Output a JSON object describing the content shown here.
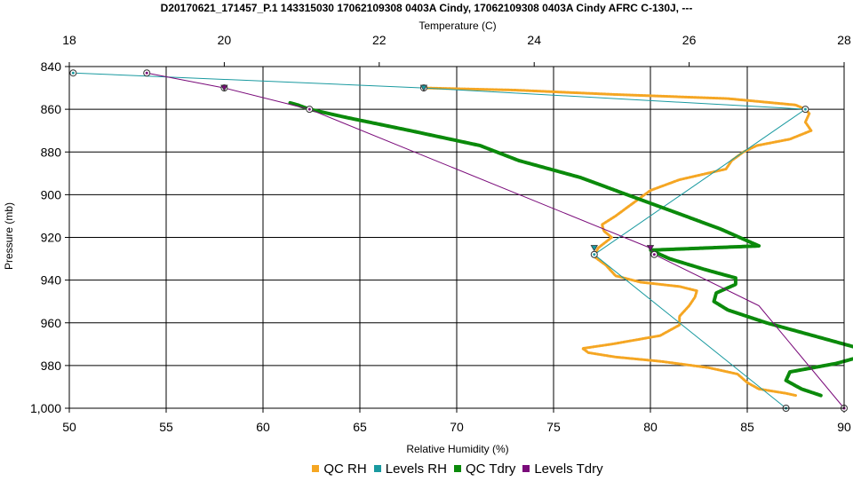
{
  "colors": {
    "qc_rh": "#f5a623",
    "levels_rh": "#1a9aa0",
    "qc_tdry": "#0b8a0b",
    "levels_tdry": "#7a0b7a",
    "grid": "#000000"
  },
  "chart_data": {
    "type": "line",
    "title": "D20170621_171457_P.1 143315030 17062109308 0403A Cindy, 17062109308 0403A Cindy AFRC C-130J, ---",
    "xlabel": "Relative Humidity (%)",
    "x2label": "Temperature (C)",
    "ylabel": "Pressure (mb)",
    "xlim": [
      50,
      90
    ],
    "x2lim": [
      18,
      28
    ],
    "ylim": [
      840,
      1000
    ],
    "y_inverted": true,
    "grid": true,
    "legend_position": "bottom",
    "x_ticks": [
      "50",
      "55",
      "60",
      "65",
      "70",
      "75",
      "80",
      "85",
      "90"
    ],
    "x2_ticks": [
      "18",
      "20",
      "22",
      "24",
      "26",
      "28"
    ],
    "y_ticks": [
      "840",
      "860",
      "880",
      "900",
      "920",
      "940",
      "960",
      "980",
      "1,000"
    ],
    "series": [
      {
        "name": "QC RH",
        "axis": "rh",
        "style": "qc",
        "points": [
          [
            68.3,
            850
          ],
          [
            73,
            851
          ],
          [
            78,
            853
          ],
          [
            84,
            855
          ],
          [
            87.5,
            858
          ],
          [
            88,
            860
          ],
          [
            88.2,
            862
          ],
          [
            88,
            866
          ],
          [
            88.3,
            870
          ],
          [
            87.2,
            874
          ],
          [
            85.5,
            877
          ],
          [
            84.8,
            880
          ],
          [
            84.2,
            884
          ],
          [
            83.9,
            888
          ],
          [
            81.5,
            893
          ],
          [
            80,
            898
          ],
          [
            79.4,
            902
          ],
          [
            78.8,
            906
          ],
          [
            78.2,
            910
          ],
          [
            77.5,
            914
          ],
          [
            77.6,
            917
          ],
          [
            78,
            920
          ],
          [
            77.3,
            925
          ],
          [
            77.1,
            929
          ],
          [
            77.7,
            933
          ],
          [
            78.2,
            938
          ],
          [
            79.5,
            941
          ],
          [
            81.5,
            943
          ],
          [
            82.4,
            945
          ],
          [
            82.3,
            948
          ],
          [
            82,
            952
          ],
          [
            81.5,
            957
          ],
          [
            81.5,
            961
          ],
          [
            80.5,
            966
          ],
          [
            78,
            970
          ],
          [
            76.5,
            972
          ],
          [
            76.8,
            974
          ],
          [
            78.2,
            976
          ],
          [
            80.5,
            978
          ],
          [
            83,
            981
          ],
          [
            84.5,
            984
          ],
          [
            85,
            988
          ],
          [
            85.6,
            991
          ],
          [
            87,
            993
          ],
          [
            87.5,
            994
          ]
        ]
      },
      {
        "name": "Levels RH",
        "axis": "rh",
        "style": "levels",
        "points": [
          [
            50.2,
            843
          ],
          [
            68.3,
            850
          ],
          [
            88,
            860
          ],
          [
            77.1,
            928
          ],
          [
            87,
            1000
          ]
        ]
      },
      {
        "name": "QC Tdry",
        "axis": "temp",
        "style": "qc",
        "points": [
          [
            20.85,
            857
          ],
          [
            20.95,
            858
          ],
          [
            21.1,
            860
          ],
          [
            21.6,
            864
          ],
          [
            22.4,
            870
          ],
          [
            23.3,
            877
          ],
          [
            23.8,
            884
          ],
          [
            24.6,
            892
          ],
          [
            25.2,
            900
          ],
          [
            25.8,
            908
          ],
          [
            26.4,
            916
          ],
          [
            26.9,
            924
          ],
          [
            25.5,
            926
          ],
          [
            25.75,
            930
          ],
          [
            26.2,
            935
          ],
          [
            26.6,
            939
          ],
          [
            26.6,
            942
          ],
          [
            26.35,
            946
          ],
          [
            26.32,
            950
          ],
          [
            26.5,
            954
          ],
          [
            27.0,
            960
          ],
          [
            27.6,
            966
          ],
          [
            28.2,
            972
          ],
          [
            28.2,
            976
          ],
          [
            27.9,
            979
          ],
          [
            27.3,
            983
          ],
          [
            27.25,
            987
          ],
          [
            27.45,
            991
          ],
          [
            27.7,
            994
          ]
        ]
      },
      {
        "name": "Levels Tdry",
        "axis": "temp",
        "style": "levels",
        "points": [
          [
            19.0,
            843
          ],
          [
            20.0,
            850
          ],
          [
            21.1,
            860
          ],
          [
            25.5,
            925
          ],
          [
            25.55,
            928
          ],
          [
            26.9,
            952
          ],
          [
            28.0,
            1000
          ]
        ]
      }
    ],
    "markers": [
      {
        "series": "Levels RH",
        "shape": "circle",
        "points": [
          [
            50.2,
            843
          ],
          [
            68.3,
            850
          ],
          [
            88,
            860
          ],
          [
            77.1,
            928
          ],
          [
            87,
            1000
          ]
        ]
      },
      {
        "series": "Levels Tdry",
        "shape": "circle",
        "points": [
          [
            19.0,
            843
          ],
          [
            20.0,
            850
          ],
          [
            21.1,
            860
          ],
          [
            25.55,
            928
          ],
          [
            28.0,
            1000
          ]
        ]
      },
      {
        "series": "Levels Tdry",
        "shape": "triangle",
        "points": [
          [
            20.0,
            850
          ],
          [
            25.5,
            925
          ]
        ]
      },
      {
        "series": "Levels RH",
        "shape": "triangle",
        "points": [
          [
            68.3,
            850
          ],
          [
            77.1,
            925
          ]
        ]
      }
    ]
  }
}
